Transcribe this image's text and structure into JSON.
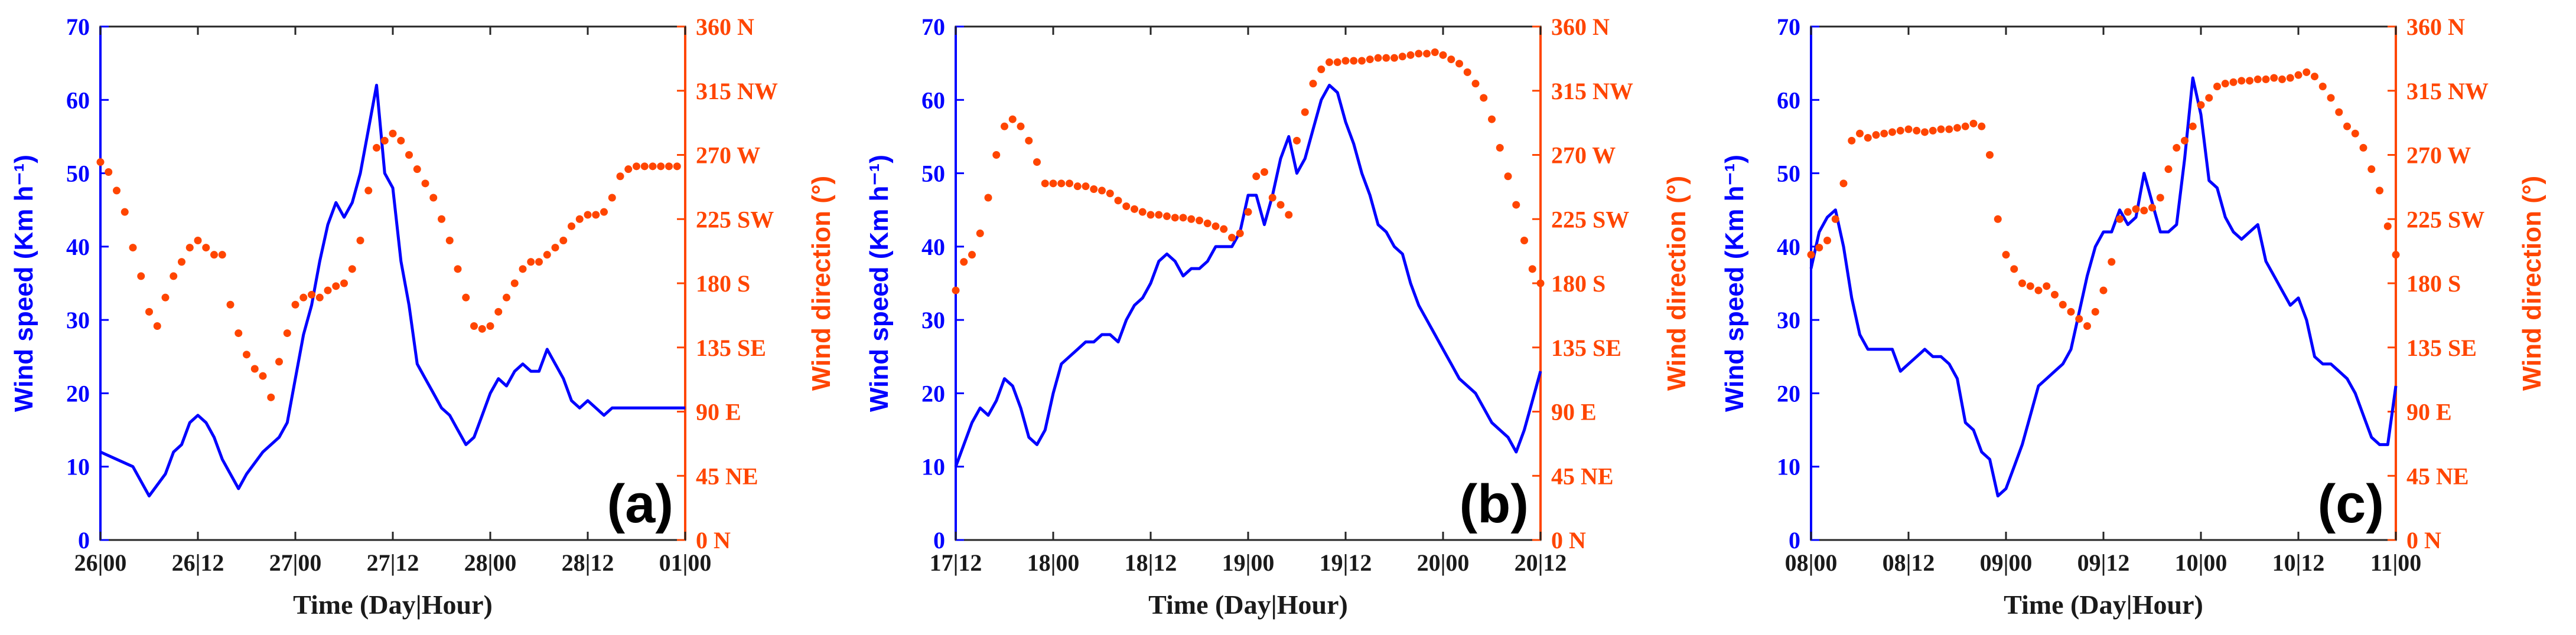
{
  "chart_data": [
    {
      "type": "line",
      "panel_label": "(a)",
      "xlabel": "Time (Day|Hour)",
      "ylabel": "Wind speed (Km h⁻¹)",
      "y2label": "Wind direction (°)",
      "xlim": [
        0,
        144
      ],
      "ylim": [
        0,
        70
      ],
      "y2lim": [
        0,
        360
      ],
      "x_ticks": [
        0,
        24,
        48,
        72,
        96,
        120,
        144
      ],
      "x_tick_labels": [
        "26|00",
        "26|12",
        "27|00",
        "27|12",
        "28|00",
        "28|12",
        "01|00"
      ],
      "y_ticks": [
        0,
        10,
        20,
        30,
        40,
        50,
        60,
        70
      ],
      "y2_ticks": [
        0,
        45,
        90,
        135,
        180,
        225,
        270,
        315,
        360
      ],
      "y2_tick_labels": [
        "0 N",
        "45 NE",
        "90 E",
        "135 SE",
        "180 S",
        "225 SW",
        "270 W",
        "315 NW",
        "360 N"
      ],
      "series": [
        {
          "name": "Wind speed",
          "axis": "left",
          "style": "line",
          "color": "#0000ff",
          "x": [
            0,
            4,
            8,
            12,
            16,
            18,
            20,
            22,
            24,
            26,
            28,
            30,
            32,
            34,
            36,
            40,
            44,
            46,
            48,
            50,
            52,
            54,
            56,
            58,
            60,
            62,
            64,
            66,
            68,
            70,
            72,
            74,
            76,
            78,
            80,
            82,
            84,
            86,
            88,
            90,
            92,
            94,
            96,
            98,
            100,
            102,
            104,
            106,
            108,
            110,
            112,
            114,
            116,
            118,
            120,
            122,
            124,
            126,
            128,
            130,
            132,
            134,
            136,
            138,
            140,
            142,
            144
          ],
          "values": [
            12,
            11,
            10,
            6,
            9,
            12,
            13,
            16,
            17,
            16,
            14,
            11,
            9,
            7,
            9,
            12,
            14,
            16,
            22,
            28,
            32,
            38,
            43,
            46,
            44,
            46,
            50,
            56,
            62,
            50,
            48,
            38,
            32,
            24,
            22,
            20,
            18,
            17,
            15,
            13,
            14,
            17,
            20,
            22,
            21,
            23,
            24,
            23,
            23,
            26,
            24,
            22,
            19,
            18,
            19,
            18,
            17,
            18,
            18,
            18,
            18,
            18,
            18,
            18,
            18,
            18,
            18
          ]
        },
        {
          "name": "Wind direction",
          "axis": "right",
          "style": "markers",
          "color": "#ff4500",
          "x": [
            0,
            2,
            4,
            6,
            8,
            10,
            12,
            14,
            16,
            18,
            20,
            22,
            24,
            26,
            28,
            30,
            32,
            34,
            36,
            38,
            40,
            42,
            44,
            46,
            48,
            50,
            52,
            54,
            56,
            58,
            60,
            62,
            64,
            66,
            68,
            70,
            72,
            74,
            76,
            78,
            80,
            82,
            84,
            86,
            88,
            90,
            92,
            94,
            96,
            98,
            100,
            102,
            104,
            106,
            108,
            110,
            112,
            114,
            116,
            118,
            120,
            122,
            124,
            126,
            128,
            130,
            132,
            134,
            136,
            138,
            140,
            142
          ],
          "values": [
            265,
            258,
            245,
            230,
            205,
            185,
            160,
            150,
            170,
            185,
            195,
            205,
            210,
            205,
            200,
            200,
            165,
            145,
            130,
            120,
            115,
            100,
            125,
            145,
            165,
            170,
            172,
            170,
            175,
            178,
            180,
            190,
            210,
            245,
            275,
            280,
            285,
            280,
            270,
            260,
            250,
            240,
            225,
            210,
            190,
            170,
            150,
            148,
            150,
            160,
            170,
            180,
            190,
            195,
            195,
            200,
            205,
            210,
            220,
            225,
            228,
            228,
            230,
            240,
            255,
            260,
            262,
            262,
            262,
            262,
            262,
            262
          ]
        }
      ]
    },
    {
      "type": "line",
      "panel_label": "(b)",
      "xlabel": "Time (Day|Hour)",
      "ylabel": "Wind speed (Km h⁻¹)",
      "y2label": "Wind direction (°)",
      "xlim": [
        0,
        72
      ],
      "ylim": [
        0,
        70
      ],
      "y2lim": [
        0,
        360
      ],
      "x_ticks": [
        0,
        12,
        24,
        36,
        48,
        60,
        72
      ],
      "x_tick_labels": [
        "17|12",
        "18|00",
        "18|12",
        "19|00",
        "19|12",
        "20|00",
        "20|12"
      ],
      "y_ticks": [
        0,
        10,
        20,
        30,
        40,
        50,
        60,
        70
      ],
      "y2_ticks": [
        0,
        45,
        90,
        135,
        180,
        225,
        270,
        315,
        360
      ],
      "y2_tick_labels": [
        "0 N",
        "45 NE",
        "90 E",
        "135 SE",
        "180 S",
        "225 SW",
        "270 W",
        "315 NW",
        "360 N"
      ],
      "series": [
        {
          "name": "Wind speed",
          "axis": "left",
          "style": "line",
          "color": "#0000ff",
          "x": [
            0,
            2,
            3,
            4,
            5,
            6,
            7,
            8,
            9,
            10,
            11,
            12,
            13,
            14,
            15,
            16,
            17,
            18,
            19,
            20,
            21,
            22,
            23,
            24,
            25,
            26,
            27,
            28,
            29,
            30,
            31,
            32,
            33,
            34,
            35,
            36,
            37,
            38,
            39,
            40,
            41,
            42,
            43,
            44,
            45,
            46,
            47,
            48,
            49,
            50,
            51,
            52,
            53,
            54,
            55,
            56,
            57,
            58,
            59,
            60,
            61,
            62,
            63,
            64,
            65,
            66,
            67,
            68,
            69,
            70,
            71,
            72
          ],
          "values": [
            10,
            16,
            18,
            17,
            19,
            22,
            21,
            18,
            14,
            13,
            15,
            20,
            24,
            25,
            26,
            27,
            27,
            28,
            28,
            27,
            30,
            32,
            33,
            35,
            38,
            39,
            38,
            36,
            37,
            37,
            38,
            40,
            40,
            40,
            42,
            47,
            47,
            43,
            47,
            52,
            55,
            50,
            52,
            56,
            60,
            62,
            61,
            57,
            54,
            50,
            47,
            43,
            42,
            40,
            39,
            35,
            32,
            30,
            28,
            26,
            24,
            22,
            21,
            20,
            18,
            16,
            15,
            14,
            12,
            15,
            19,
            23
          ]
        },
        {
          "name": "Wind direction",
          "axis": "right",
          "style": "markers",
          "color": "#ff4500",
          "x": [
            0,
            1,
            2,
            3,
            4,
            5,
            6,
            7,
            8,
            9,
            10,
            11,
            12,
            13,
            14,
            15,
            16,
            17,
            18,
            19,
            20,
            21,
            22,
            23,
            24,
            25,
            26,
            27,
            28,
            29,
            30,
            31,
            32,
            33,
            34,
            35,
            36,
            37,
            38,
            39,
            40,
            41,
            42,
            43,
            44,
            45,
            46,
            47,
            48,
            49,
            50,
            51,
            52,
            53,
            54,
            55,
            56,
            57,
            58,
            59,
            60,
            61,
            62,
            63,
            64,
            65,
            66,
            67,
            68,
            69,
            70,
            71,
            72
          ],
          "values": [
            175,
            195,
            200,
            215,
            240,
            270,
            290,
            295,
            290,
            280,
            265,
            250,
            250,
            250,
            250,
            248,
            248,
            246,
            245,
            243,
            238,
            234,
            232,
            230,
            228,
            228,
            227,
            226,
            226,
            225,
            224,
            222,
            220,
            218,
            212,
            215,
            230,
            255,
            258,
            240,
            235,
            228,
            280,
            300,
            320,
            330,
            335,
            335,
            336,
            336,
            336,
            337,
            338,
            338,
            338,
            339,
            340,
            341,
            341,
            342,
            340,
            337,
            334,
            328,
            320,
            310,
            295,
            275,
            255,
            235,
            210,
            190,
            180
          ]
        }
      ]
    },
    {
      "type": "line",
      "panel_label": "(c)",
      "xlabel": "Time (Day|Hour)",
      "ylabel": "Wind speed (Km h⁻¹)",
      "y2label": "Wind direction (°)",
      "xlim": [
        0,
        72
      ],
      "ylim": [
        0,
        70
      ],
      "y2lim": [
        0,
        360
      ],
      "x_ticks": [
        0,
        12,
        24,
        36,
        48,
        60,
        72
      ],
      "x_tick_labels": [
        "08|00",
        "08|12",
        "09|00",
        "09|12",
        "10|00",
        "10|12",
        "11|00"
      ],
      "y_ticks": [
        0,
        10,
        20,
        30,
        40,
        50,
        60,
        70
      ],
      "y2_ticks": [
        0,
        45,
        90,
        135,
        180,
        225,
        270,
        315,
        360
      ],
      "y2_tick_labels": [
        "0 N",
        "45 NE",
        "90 E",
        "135 SE",
        "180 S",
        "225 SW",
        "270 W",
        "315 NW",
        "360 N"
      ],
      "series": [
        {
          "name": "Wind speed",
          "axis": "left",
          "style": "line",
          "color": "#0000ff",
          "x": [
            0,
            1,
            2,
            3,
            4,
            5,
            6,
            7,
            8,
            9,
            10,
            11,
            12,
            13,
            14,
            15,
            16,
            17,
            18,
            19,
            20,
            21,
            22,
            23,
            24,
            25,
            26,
            27,
            28,
            29,
            30,
            31,
            32,
            33,
            34,
            35,
            36,
            37,
            38,
            39,
            40,
            41,
            42,
            43,
            44,
            45,
            46,
            47,
            48,
            49,
            50,
            51,
            52,
            53,
            54,
            55,
            56,
            57,
            58,
            59,
            60,
            61,
            62,
            63,
            64,
            65,
            66,
            67,
            68,
            69,
            70,
            71,
            72
          ],
          "values": [
            37,
            42,
            44,
            45,
            40,
            33,
            28,
            26,
            26,
            26,
            26,
            23,
            24,
            25,
            26,
            25,
            25,
            24,
            22,
            16,
            15,
            12,
            11,
            6,
            7,
            10,
            13,
            17,
            21,
            22,
            23,
            24,
            26,
            31,
            36,
            40,
            42,
            42,
            45,
            43,
            44,
            50,
            46,
            42,
            42,
            43,
            52,
            63,
            58,
            49,
            48,
            44,
            42,
            41,
            42,
            43,
            38,
            36,
            34,
            32,
            33,
            30,
            25,
            24,
            24,
            23,
            22,
            20,
            17,
            14,
            13,
            13,
            21
          ]
        },
        {
          "name": "Wind direction",
          "axis": "right",
          "style": "markers",
          "color": "#ff4500",
          "x": [
            0,
            1,
            2,
            3,
            4,
            5,
            6,
            7,
            8,
            9,
            10,
            11,
            12,
            13,
            14,
            15,
            16,
            17,
            18,
            19,
            20,
            21,
            22,
            23,
            24,
            25,
            26,
            27,
            28,
            29,
            30,
            31,
            32,
            33,
            34,
            35,
            36,
            37,
            38,
            39,
            40,
            41,
            42,
            43,
            44,
            45,
            46,
            47,
            48,
            49,
            50,
            51,
            52,
            53,
            54,
            55,
            56,
            57,
            58,
            59,
            60,
            61,
            62,
            63,
            64,
            65,
            66,
            67,
            68,
            69,
            70,
            71,
            72
          ],
          "values": [
            200,
            205,
            210,
            225,
            250,
            280,
            285,
            282,
            284,
            285,
            286,
            287,
            288,
            287,
            286,
            287,
            288,
            288,
            289,
            290,
            292,
            290,
            270,
            225,
            200,
            190,
            180,
            178,
            175,
            178,
            172,
            165,
            160,
            155,
            150,
            160,
            175,
            195,
            225,
            230,
            232,
            231,
            233,
            240,
            260,
            275,
            280,
            290,
            305,
            310,
            318,
            320,
            321,
            322,
            322,
            323,
            323,
            324,
            323,
            324,
            326,
            328,
            325,
            318,
            310,
            300,
            290,
            285,
            275,
            260,
            245,
            220,
            200
          ]
        }
      ]
    }
  ]
}
